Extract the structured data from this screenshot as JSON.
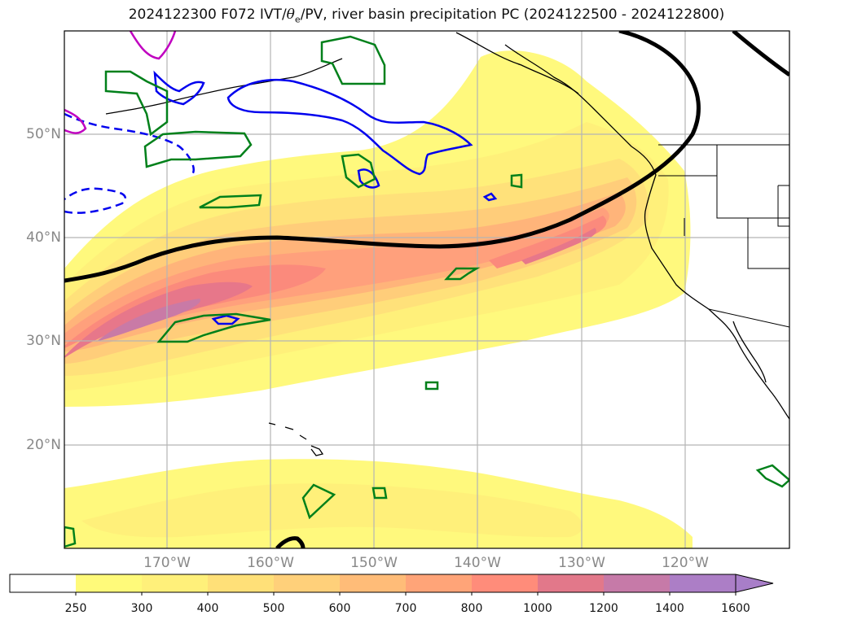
{
  "map": {
    "title_prefix": "2024122300 F072 IVT/",
    "title_theta": "θ",
    "title_sub": "e",
    "title_suffix": "/PV, river basin precipitation PC (2024122500 - 2024122800)",
    "lat_labels": [
      "50°N",
      "40°N",
      "30°N",
      "20°N"
    ],
    "lon_labels": [
      "170°W",
      "160°W",
      "150°W",
      "140°W",
      "130°W",
      "120°W"
    ]
  },
  "colorbar": {
    "ticks": [
      "250",
      "300",
      "400",
      "500",
      "600",
      "700",
      "800",
      "1000",
      "1200",
      "1400",
      "1600"
    ],
    "colors": [
      "#ffffff",
      "#fffa7a",
      "#fff07a",
      "#ffe078",
      "#ffd07a",
      "#ffbc78",
      "#ffa478",
      "#ff8c7a",
      "#e2788a",
      "#c67aa8",
      "#ac7ec6"
    ]
  }
}
